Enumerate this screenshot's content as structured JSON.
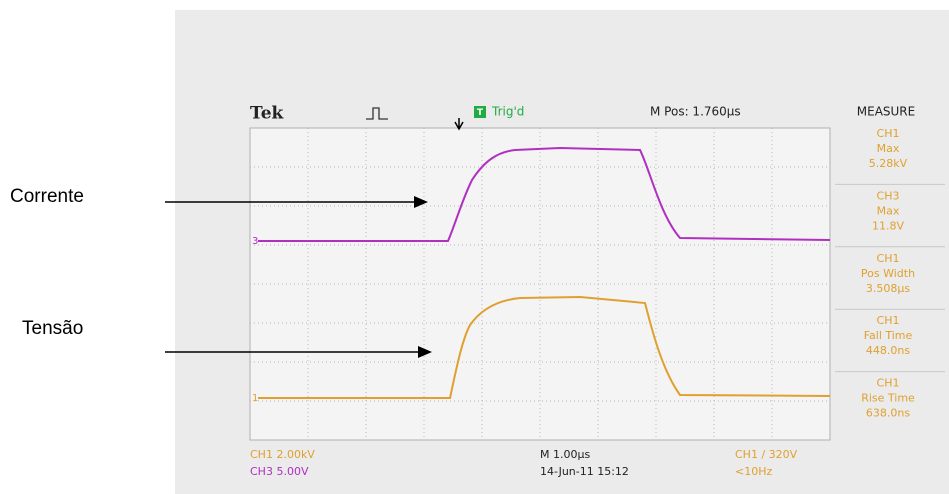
{
  "annotations": {
    "current": "Corrente",
    "voltage": "Tensão"
  },
  "header": {
    "brand": "Tek",
    "trigger_status": "Trig'd",
    "position": "M Pos: 1.760µs",
    "menu": "MEASURE"
  },
  "trace_markers": {
    "ch3": "3",
    "ch1": "1",
    "trigger": "T"
  },
  "measurements": [
    {
      "channel": "CH1",
      "label": "Max",
      "value": "5.28kV"
    },
    {
      "channel": "CH3",
      "label": "Max",
      "value": "11.8V"
    },
    {
      "channel": "CH1",
      "label": "Pos Width",
      "value": "3.508µs"
    },
    {
      "channel": "CH1",
      "label": "Fall Time",
      "value": "448.0ns"
    },
    {
      "channel": "CH1",
      "label": "Rise Time",
      "value": "638.0ns"
    }
  ],
  "footer": {
    "ch1_scale": "CH1 2.00kV",
    "ch3_scale": "CH3 5.00V",
    "timebase": "M 1.00µs",
    "timestamp": "14-Jun-11 15:12",
    "trigger_level": "CH1 / 320V",
    "frequency": "<10Hz"
  }
}
